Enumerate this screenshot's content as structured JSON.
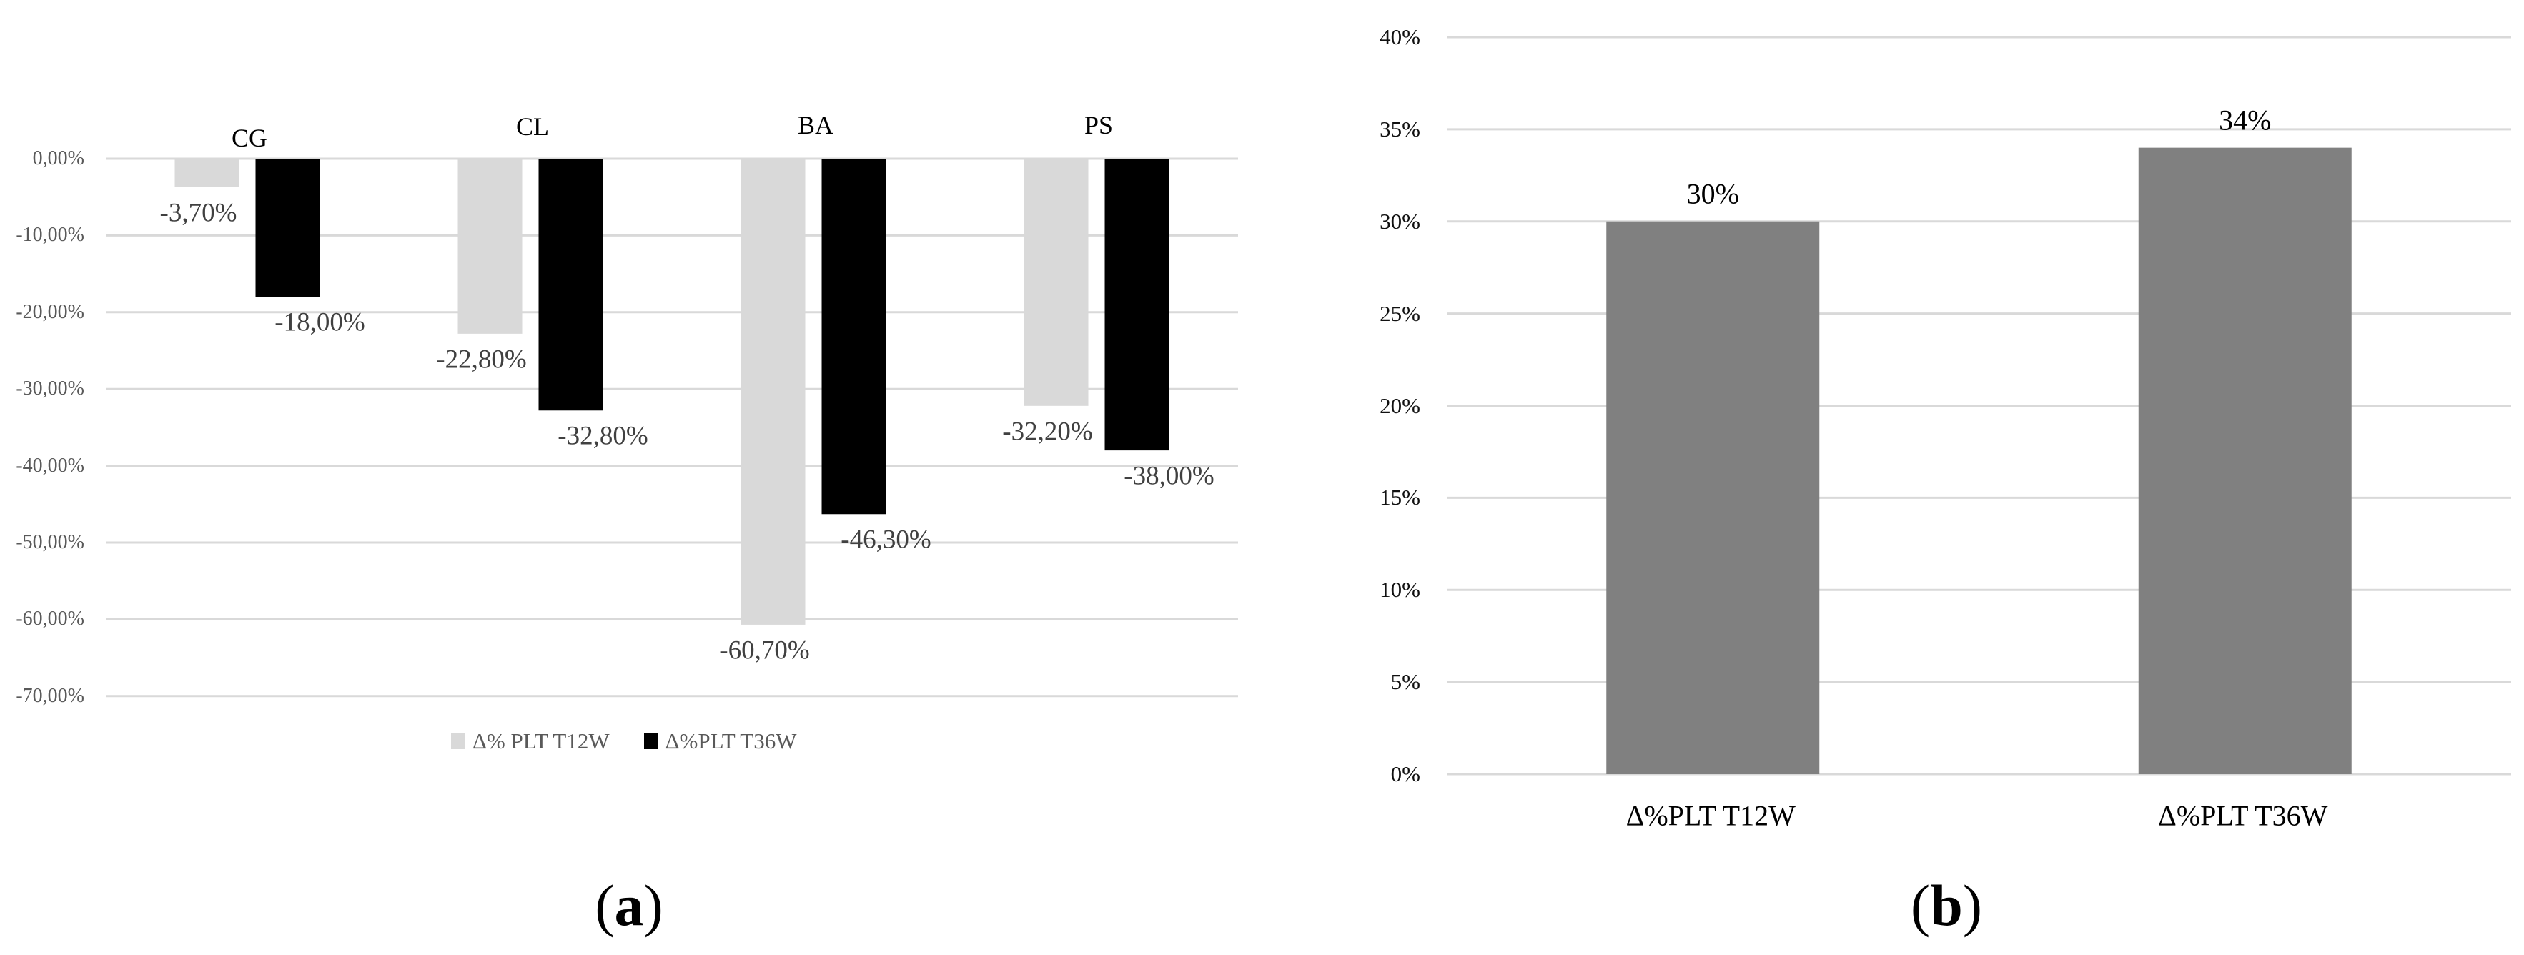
{
  "colors": {
    "series_t12w_a": "#d9d9d9",
    "series_t36w_a": "#000000",
    "bar_b": "#808080",
    "gridline": "#d9d9d9",
    "tick_text_a": "#595959",
    "data_label_a": "#404040"
  },
  "panel_a": {
    "caption_open": "(",
    "caption_letter": "a",
    "caption_close": ")",
    "legend": [
      {
        "label": "Δ% PLT T12W",
        "color": "#d9d9d9"
      },
      {
        "label": "Δ%PLT T36W",
        "color": "#000000"
      }
    ]
  },
  "panel_b": {
    "caption_open": "(",
    "caption_letter": "b",
    "caption_close": ")"
  },
  "chart_data": [
    {
      "type": "bar",
      "title": "",
      "panel": "(a)",
      "xlabel": "",
      "ylabel": "",
      "categories": [
        "CG",
        "CL",
        "BA",
        "PS"
      ],
      "category_axis_position": "top",
      "series": [
        {
          "name": "Δ% PLT T12W",
          "color": "#d9d9d9",
          "values": [
            -3.7,
            -22.8,
            -60.7,
            -32.2
          ],
          "labels": [
            "-3,70%",
            "-22,80%",
            "-60,70%",
            "-32,20%"
          ]
        },
        {
          "name": "Δ%PLT T36W",
          "color": "#000000",
          "values": [
            -18.0,
            -32.8,
            -46.3,
            -38.0
          ],
          "labels": [
            "-18,00%",
            "-32,80%",
            "-46,30%",
            "-38,00%"
          ]
        }
      ],
      "ylim": [
        -70,
        0
      ],
      "yticks": [
        0,
        -10,
        -20,
        -30,
        -40,
        -50,
        -60,
        -70
      ],
      "ytick_labels": [
        "0,00%",
        "-10,00%",
        "-20,00%",
        "-30,00%",
        "-40,00%",
        "-50,00%",
        "-60,00%",
        "-70,00%"
      ],
      "grid": true,
      "legend_position": "bottom"
    },
    {
      "type": "bar",
      "title": "",
      "panel": "(b)",
      "xlabel": "",
      "ylabel": "",
      "categories": [
        "Δ%PLT T12W",
        "Δ%PLT T36W"
      ],
      "values": [
        30,
        34
      ],
      "labels": [
        "30%",
        "34%"
      ],
      "color": "#808080",
      "ylim": [
        0,
        40
      ],
      "yticks": [
        0,
        5,
        10,
        15,
        20,
        25,
        30,
        35,
        40
      ],
      "ytick_labels": [
        "0%",
        "5%",
        "10%",
        "15%",
        "20%",
        "25%",
        "30%",
        "35%",
        "40%"
      ],
      "grid": true,
      "legend_position": "none"
    }
  ]
}
